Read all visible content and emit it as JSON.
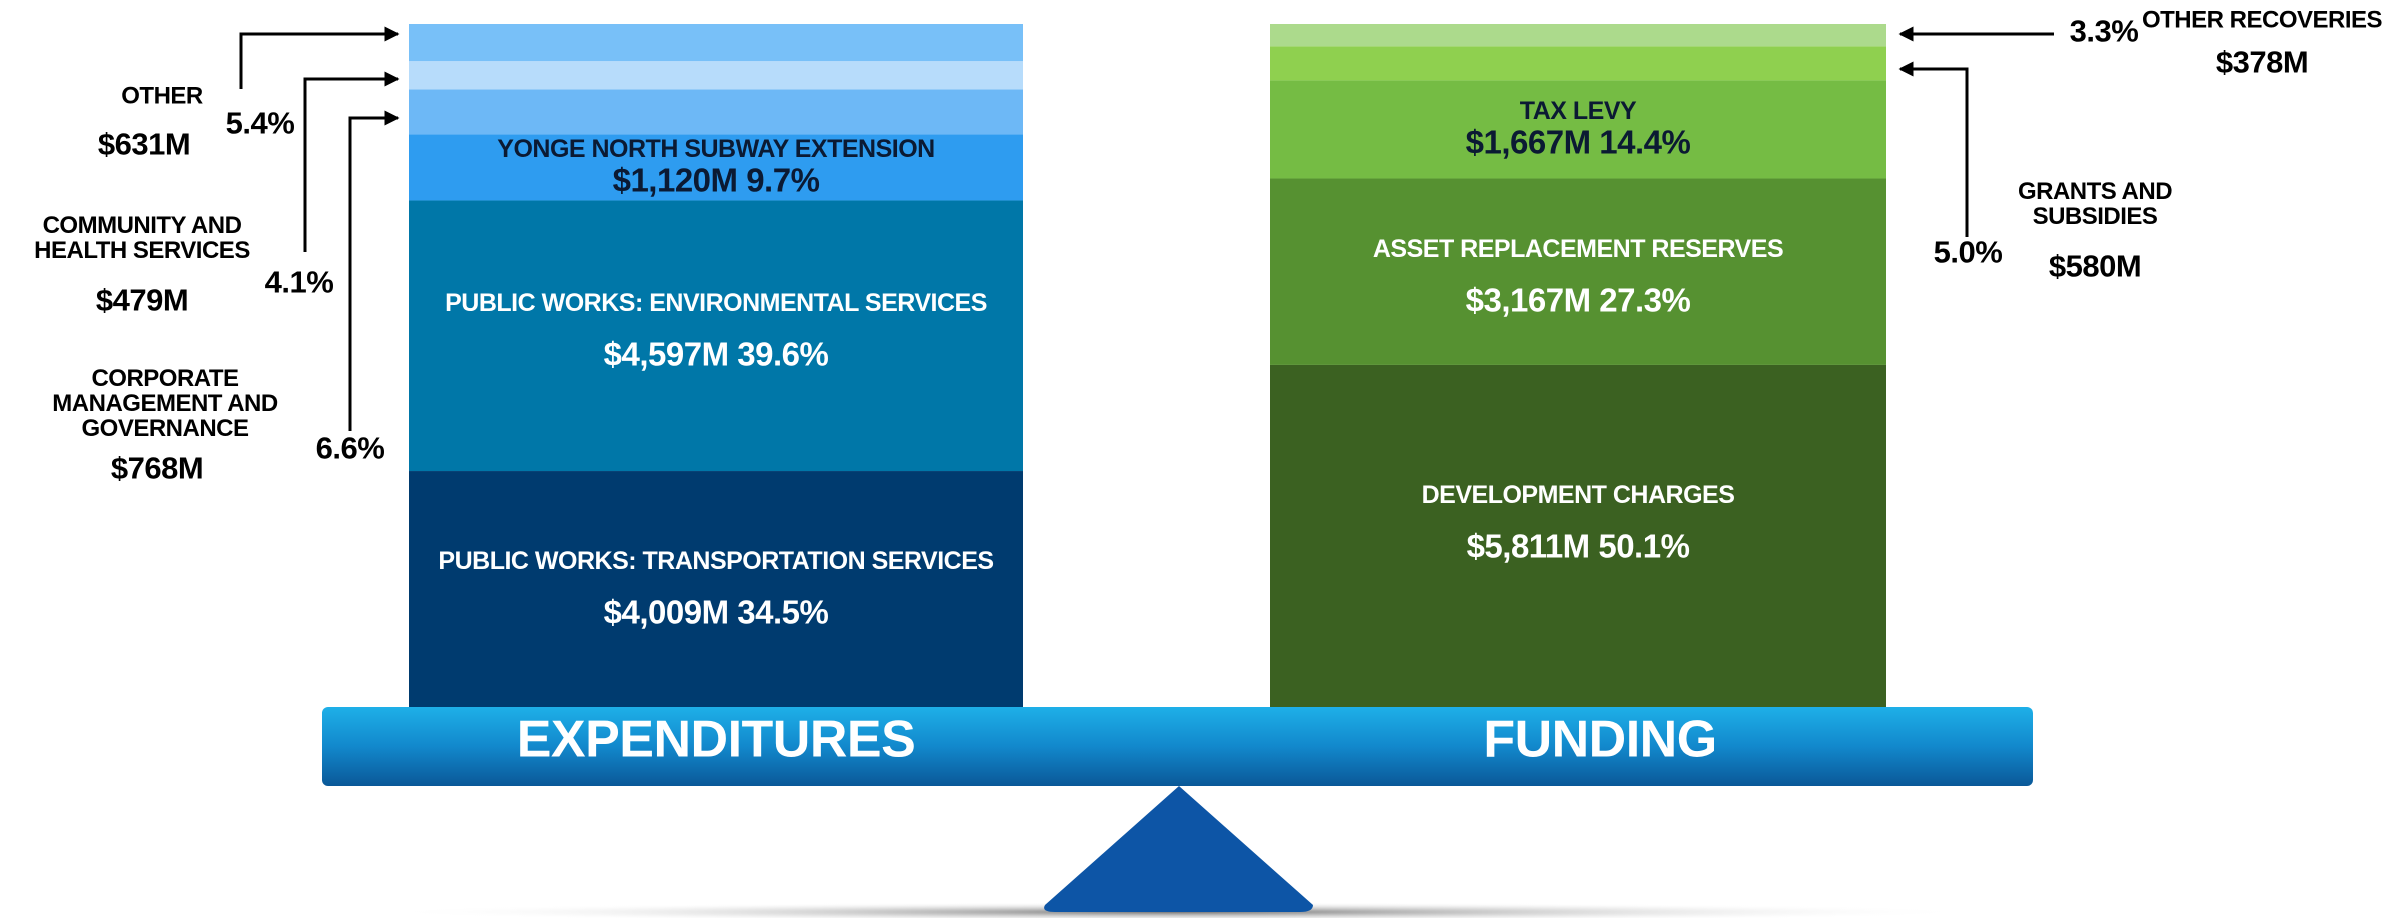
{
  "chart_data": [
    {
      "type": "stacked_bar",
      "label": "EXPENDITURES",
      "segments": [
        {
          "name": "PUBLIC WORKS: TRANSPORTATION SERVICES",
          "value": 4009,
          "value_label": "$4,009M",
          "percent": 34.5,
          "percent_label": "34.5%",
          "color": "#003b6f"
        },
        {
          "name": "PUBLIC WORKS: ENVIRONMENTAL SERVICES",
          "value": 4597,
          "value_label": "$4,597M",
          "percent": 39.6,
          "percent_label": "39.6%",
          "color": "#0077a8"
        },
        {
          "name": "YONGE NORTH SUBWAY EXTENSION",
          "value": 1120,
          "value_label": "$1,120M",
          "percent": 9.7,
          "percent_label": "9.7%",
          "color": "#2e9cf0"
        },
        {
          "name": "CORPORATE MANAGEMENT AND GOVERNANCE",
          "value": 768,
          "value_label": "$768M",
          "percent": 6.6,
          "percent_label": "6.6%",
          "color": "#6db8f6"
        },
        {
          "name": "COMMUNITY AND HEALTH SERVICES",
          "value": 479,
          "value_label": "$479M",
          "percent": 4.1,
          "percent_label": "4.1%",
          "color": "#b7dcfb"
        },
        {
          "name": "OTHER",
          "value": 631,
          "value_label": "$631M",
          "percent": 5.4,
          "percent_label": "5.4%",
          "color": "#78c0f8"
        }
      ]
    },
    {
      "type": "stacked_bar",
      "label": "FUNDING",
      "segments": [
        {
          "name": "DEVELOPMENT CHARGES",
          "value": 5811,
          "value_label": "$5,811M",
          "percent": 50.1,
          "percent_label": "50.1%",
          "color": "#3b6121"
        },
        {
          "name": "ASSET REPLACEMENT RESERVES",
          "value": 3167,
          "value_label": "$3,167M",
          "percent": 27.3,
          "percent_label": "27.3%",
          "color": "#569131"
        },
        {
          "name": "TAX LEVY",
          "value": 1667,
          "value_label": "$1,667M",
          "percent": 14.4,
          "percent_label": "14.4%",
          "color": "#75bc44"
        },
        {
          "name": "GRANTS AND SUBSIDIES",
          "value": 580,
          "value_label": "$580M",
          "percent": 5.0,
          "percent_label": "5.0%",
          "color": "#8fd04f"
        },
        {
          "name": "OTHER RECOVERIES",
          "value": 378,
          "value_label": "$378M",
          "percent": 3.3,
          "percent_label": "3.3%",
          "color": "#acda8c"
        }
      ]
    }
  ]
}
